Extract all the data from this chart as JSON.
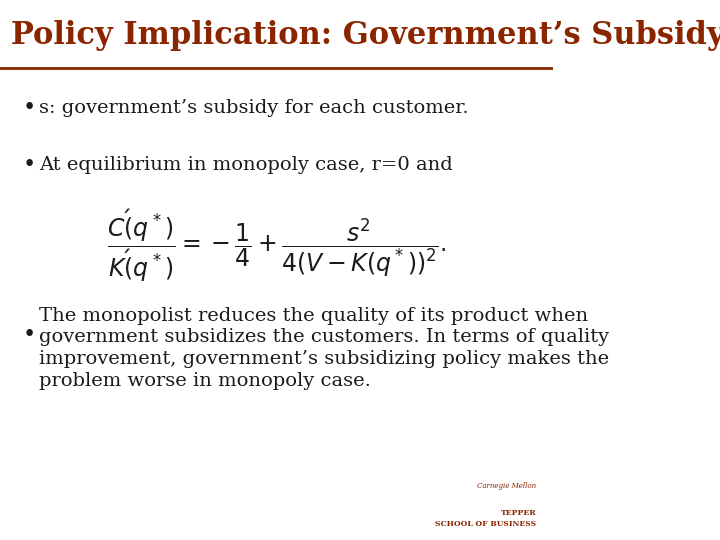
{
  "title": "Policy Implication: Government’s Subsidy",
  "title_color": "#8B2500",
  "title_bg_color": "#ffffff",
  "separator_color": "#8B2500",
  "bg_color": "#ffffff",
  "bullet1": "s: government’s subsidy for each customer.",
  "bullet2": "At equilibrium in monopoly case, r=0 and",
  "bullet3_line1": "The monopolist reduces the quality of its product when",
  "bullet3_line2": "government subsidizes the customers. In terms of quality",
  "bullet3_line3": "improvement, government’s subsidizing policy makes the",
  "bullet3_line4": "problem worse in monopoly case.",
  "text_color": "#1a1a1a",
  "formula": "\\frac{C'(q^*)}{K'(q^*)} = -\\frac{1}{4} + \\frac{s^2}{4(V - K(q^*))^2}.",
  "font_size_title": 22,
  "font_size_body": 14
}
